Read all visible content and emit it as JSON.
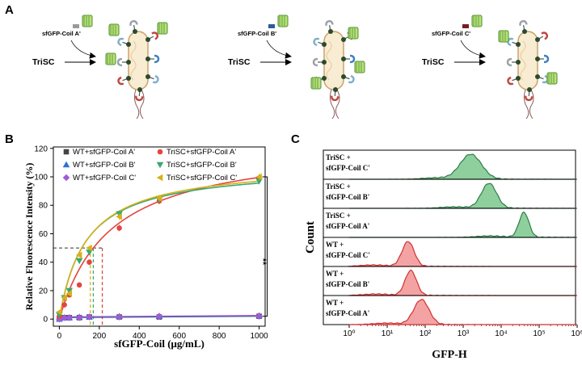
{
  "panels": {
    "a": "A",
    "b": "B",
    "c": "C"
  },
  "schematic": {
    "tric_label": "TriSC",
    "items": [
      {
        "coil": "sfGFP-Coil A'"
      },
      {
        "coil": "sfGFP-Coil B'"
      },
      {
        "coil": "sfGFP-Coil C'"
      }
    ]
  },
  "colors": {
    "wt_a": "#444444",
    "wt_b": "#2f6fd6",
    "wt_c": "#a25bd6",
    "tri_a": "#e5443f",
    "tri_b": "#3aa873",
    "tri_c": "#d8b01a",
    "hist_green": "#8fcf9e",
    "hist_green_line": "#2e7d4a",
    "hist_red": "#f3a3a3",
    "hist_red_line": "#d43030"
  },
  "chart_data": [
    {
      "type": "line",
      "xlabel": "sfGFP-Coil (μg/mL)",
      "ylabel": "Relative Fluorescence Intensity (%)",
      "xlim": [
        -30,
        1030
      ],
      "ylim": [
        -5,
        121
      ],
      "xticks": [
        "0",
        "200",
        "400",
        "600",
        "800",
        "1000"
      ],
      "yticks": [
        "0",
        "20",
        "40",
        "60",
        "80",
        "100",
        "120"
      ],
      "x": [
        0,
        25,
        50,
        100,
        150,
        300,
        500,
        1000
      ],
      "series": [
        {
          "name": "WT+sfGFP-Coil A'",
          "marker": "square",
          "values": [
            0,
            1,
            1,
            1,
            1.5,
            1.5,
            1.5,
            2
          ]
        },
        {
          "name": "WT+sfGFP-Coil B'",
          "marker": "triangle-up",
          "values": [
            0,
            1,
            1,
            1.5,
            1.5,
            2,
            2,
            2.5
          ]
        },
        {
          "name": "WT+sfGFP-Coil C'",
          "marker": "diamond",
          "values": [
            0,
            1,
            1,
            1,
            1.5,
            1.5,
            2,
            2
          ]
        },
        {
          "name": "TriSC+sfGFP-Coil A'",
          "marker": "circle",
          "values": [
            2,
            10,
            17,
            24,
            40,
            64,
            83,
            99
          ]
        },
        {
          "name": "TriSC+sfGFP-Coil B'",
          "marker": "triangle-down",
          "values": [
            3,
            15,
            20,
            41,
            47,
            74,
            84,
            97
          ]
        },
        {
          "name": "TriSC+sfGFP-Coil C'",
          "marker": "triangle-left",
          "values": [
            5,
            15,
            18,
            45,
            50,
            72,
            85,
            100
          ]
        }
      ],
      "half_max_guides": {
        "y": 50,
        "x_values": [
          155,
          170,
          215
        ]
      },
      "significance": "**",
      "legend_position": "top"
    },
    {
      "type": "area",
      "xlabel": "GFP-H",
      "ylabel": "Count",
      "xscale": "log",
      "xticks": [
        "10⁰",
        "10¹",
        "10²",
        "10³",
        "10⁴",
        "10⁵",
        "10⁶"
      ],
      "series": [
        {
          "name": "TriSC + sfGFP-Coil C'",
          "label_lines": [
            "TriSC +",
            "sfGFP-Coil C'"
          ],
          "peak_log10": 3.2,
          "width": 0.28
        },
        {
          "name": "TriSC + sfGFP-Coil B'",
          "label_lines": [
            "TriSC +",
            "sfGFP-Coil B'"
          ],
          "peak_log10": 3.68,
          "width": 0.2
        },
        {
          "name": "TriSC + sfGFP-Coil A'",
          "label_lines": [
            "TriSC +",
            "sfGFP-Coil A'"
          ],
          "peak_log10": 4.6,
          "width": 0.13
        },
        {
          "name": "WT + sfGFP-Coil C'",
          "label_lines": [
            "WT +",
            "sfGFP-Coil C'"
          ],
          "peak_log10": 1.55,
          "width": 0.16
        },
        {
          "name": "WT + sfGFP-Coil B'",
          "label_lines": [
            "WT +",
            "sfGFP-Coil B'"
          ],
          "peak_log10": 1.62,
          "width": 0.15
        },
        {
          "name": "WT + sfGFP-Coil A'",
          "label_lines": [
            "WT +",
            "sfGFP-Coil A'"
          ],
          "peak_log10": 1.9,
          "width": 0.2
        }
      ]
    }
  ]
}
